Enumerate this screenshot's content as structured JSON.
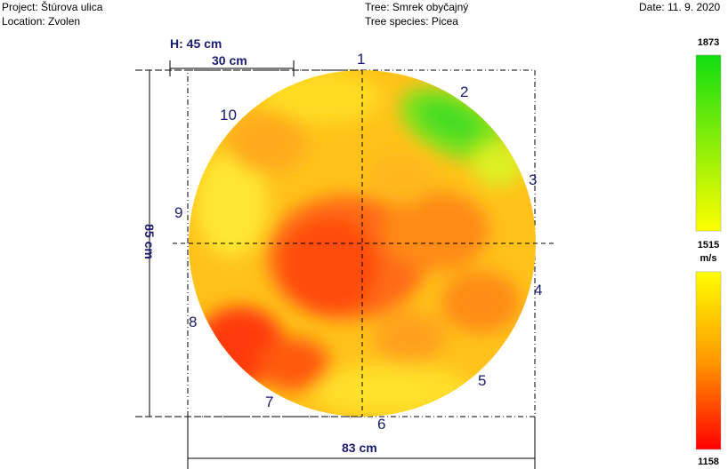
{
  "header": {
    "project": "Project: Štúrova ulica",
    "location": "Location: Zvolen",
    "tree": "Tree: Smrek obyčajný",
    "species": "Tree species: Picea",
    "date": "Date: 11. 9. 2020"
  },
  "dimensions": {
    "height_label": "H: 45 cm",
    "top_label": "30 cm",
    "width_label": "83 cm",
    "vertical_label": "85 cm"
  },
  "sensors": [
    "1",
    "2",
    "3",
    "4",
    "5",
    "6",
    "7",
    "8",
    "9",
    "10"
  ],
  "scale": {
    "max": "1873",
    "mid": "1515",
    "unit": "m/s",
    "min": "1158",
    "colors": {
      "green": "#22dd22",
      "yellow": "#ffff00",
      "orange": "#ff9900",
      "red": "#ff0000"
    }
  }
}
